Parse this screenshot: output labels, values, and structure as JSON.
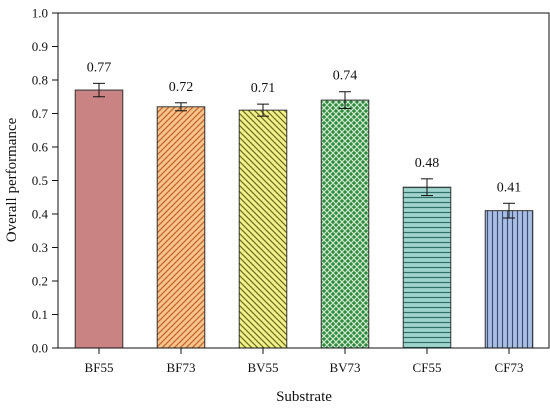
{
  "chart_data": {
    "type": "bar",
    "title": "",
    "xlabel": "Substrate",
    "ylabel": "Overall performance",
    "ylim": [
      0,
      1.0
    ],
    "yticks": [
      "0.0",
      "0.1",
      "0.2",
      "0.3",
      "0.4",
      "0.5",
      "0.6",
      "0.7",
      "0.8",
      "0.9",
      "1.0"
    ],
    "grid": false,
    "categories": [
      "BF55",
      "BF73",
      "BV55",
      "BV73",
      "CF55",
      "CF73"
    ],
    "values": [
      0.77,
      0.72,
      0.71,
      0.74,
      0.48,
      0.41
    ],
    "value_labels": [
      "0.77",
      "0.72",
      "0.71",
      "0.74",
      "0.48",
      "0.41"
    ],
    "errors": [
      0.02,
      0.012,
      0.018,
      0.025,
      0.025,
      0.022
    ],
    "bars": [
      {
        "fill": "#c98383",
        "pattern": "solid",
        "line": "#333333"
      },
      {
        "fill": "#f7c48c",
        "pattern": "diag-right",
        "line": "#c0632a"
      },
      {
        "fill": "#f2f08a",
        "pattern": "diag-left",
        "line": "#6b6b20"
      },
      {
        "fill": "#2f8a3f",
        "pattern": "crosshatch",
        "line": "#cfe9cf"
      },
      {
        "fill": "#9fd4cc",
        "pattern": "horizontal",
        "line": "#2f6f6a"
      },
      {
        "fill": "#a9bfe3",
        "pattern": "vertical",
        "line": "#3d4f73"
      }
    ]
  }
}
